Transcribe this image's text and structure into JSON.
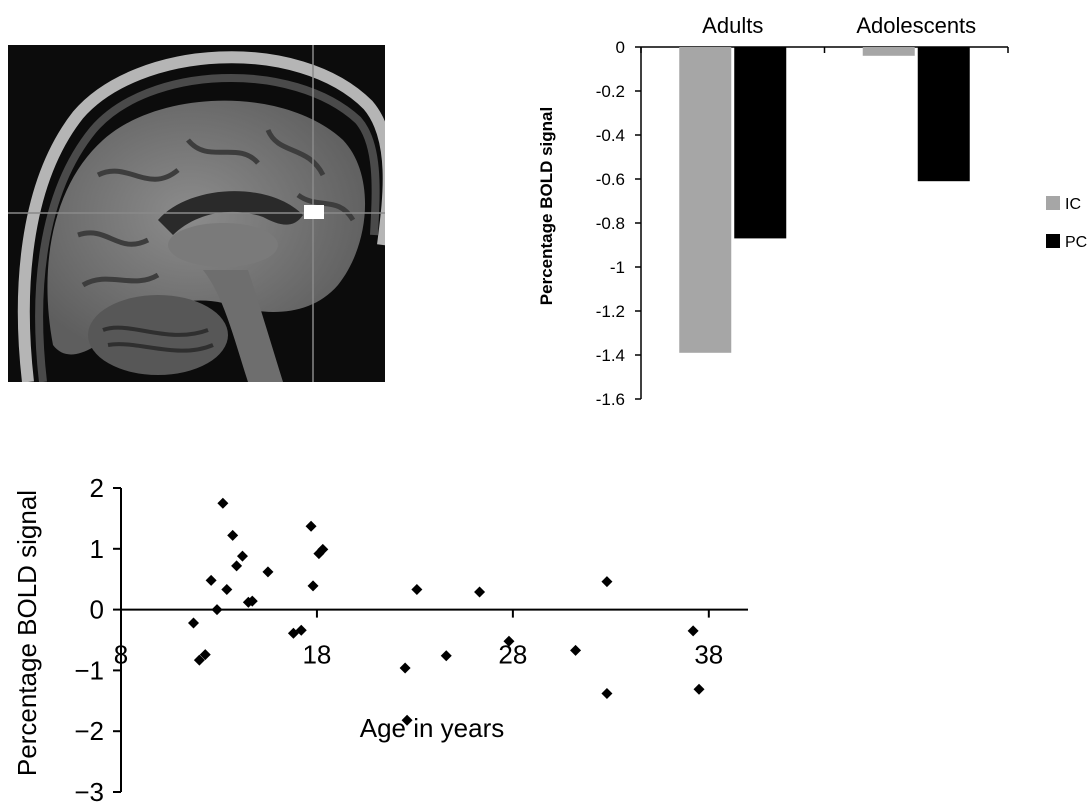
{
  "charts_meta": {
    "bar_chart_ref": 0,
    "scatter_chart_ref": 1
  },
  "chart_data": [
    {
      "type": "bar",
      "title": "",
      "xlabel": "",
      "ylabel": "Percentage BOLD signal",
      "categories": [
        "Adults",
        "Adolescents"
      ],
      "series": [
        {
          "name": "IC",
          "color": "#a6a6a6",
          "values": [
            -1.39,
            -0.04
          ]
        },
        {
          "name": "PC",
          "color": "#000000",
          "values": [
            -0.87,
            -0.61
          ]
        }
      ],
      "ylim": [
        -1.6,
        0
      ],
      "yticks": [
        0,
        -0.2,
        -0.4,
        -0.6,
        -0.8,
        -1,
        -1.2,
        -1.4,
        -1.6
      ],
      "ytick_labels": [
        "0",
        "-0.2",
        "-0.4",
        "-0.6",
        "-0.8",
        "-1",
        "-1.2",
        "-1.4",
        "-1.6"
      ],
      "category_label_position": "top",
      "legend": "right",
      "grid": false
    },
    {
      "type": "scatter",
      "title": "",
      "xlabel": "Age in years",
      "ylabel": "Percentage BOLD signal",
      "xlim": [
        8,
        40
      ],
      "ylim": [
        -3,
        2
      ],
      "xticks": [
        8,
        18,
        28,
        38
      ],
      "xtick_labels": [
        "8",
        "18",
        "28",
        "38"
      ],
      "yticks": [
        2,
        1,
        0,
        -1,
        -2,
        -3
      ],
      "ytick_labels": [
        "2",
        "1",
        "0",
        "−1",
        "−2",
        "−3"
      ],
      "marker": "diamond",
      "color": "#000000",
      "grid": false,
      "points": [
        {
          "x": 11.7,
          "y": -0.22
        },
        {
          "x": 12.0,
          "y": -0.83
        },
        {
          "x": 12.3,
          "y": -0.74
        },
        {
          "x": 12.6,
          "y": 0.48
        },
        {
          "x": 12.9,
          "y": 0.0
        },
        {
          "x": 13.2,
          "y": 1.75
        },
        {
          "x": 13.4,
          "y": 0.33
        },
        {
          "x": 13.7,
          "y": 1.22
        },
        {
          "x": 13.9,
          "y": 0.72
        },
        {
          "x": 14.2,
          "y": 0.88
        },
        {
          "x": 14.5,
          "y": 0.12
        },
        {
          "x": 14.7,
          "y": 0.14
        },
        {
          "x": 15.5,
          "y": 0.62
        },
        {
          "x": 16.8,
          "y": -0.39
        },
        {
          "x": 17.2,
          "y": -0.34
        },
        {
          "x": 17.7,
          "y": 1.37
        },
        {
          "x": 17.8,
          "y": 0.39
        },
        {
          "x": 18.1,
          "y": 0.92
        },
        {
          "x": 18.3,
          "y": 0.99
        },
        {
          "x": 22.5,
          "y": -0.96
        },
        {
          "x": 22.6,
          "y": -1.82
        },
        {
          "x": 23.1,
          "y": 0.33
        },
        {
          "x": 24.6,
          "y": -0.76
        },
        {
          "x": 26.3,
          "y": 0.29
        },
        {
          "x": 27.8,
          "y": -0.52
        },
        {
          "x": 31.2,
          "y": -0.67
        },
        {
          "x": 32.8,
          "y": 0.46
        },
        {
          "x": 32.8,
          "y": -1.38
        },
        {
          "x": 37.2,
          "y": -0.35
        },
        {
          "x": 37.5,
          "y": -1.31
        }
      ]
    }
  ]
}
